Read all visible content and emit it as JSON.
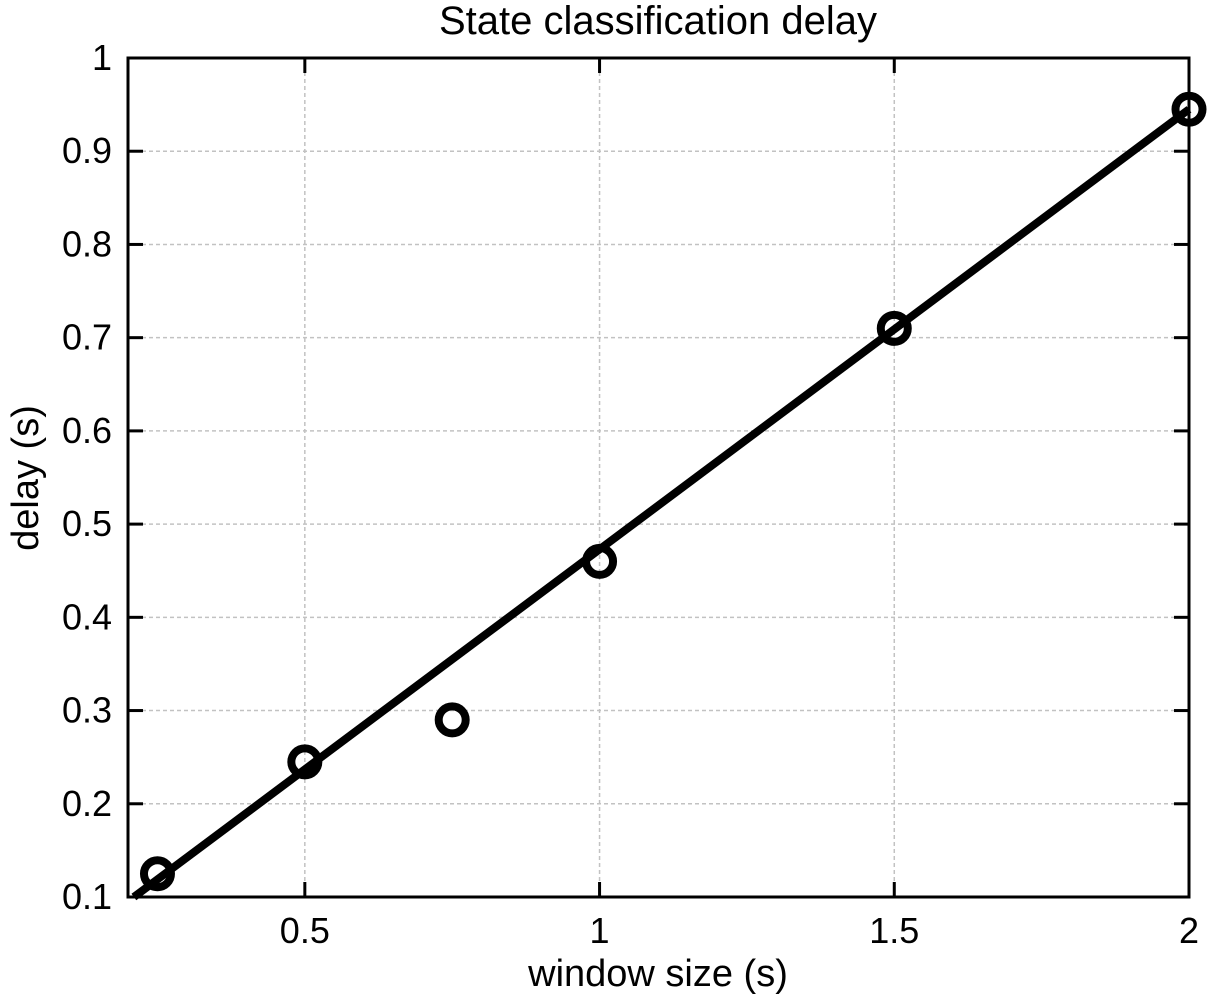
{
  "chart_data": {
    "type": "scatter",
    "title": "State classification delay",
    "xlabel": "window size (s)",
    "ylabel": "delay (s)",
    "xlim": [
      0.2,
      2
    ],
    "ylim": [
      0.1,
      1
    ],
    "x_ticks": [
      0.5,
      1,
      1.5,
      2
    ],
    "x_tick_labels": [
      "0.5",
      "1",
      "1.5",
      "2"
    ],
    "y_ticks": [
      0.1,
      0.2,
      0.3,
      0.4,
      0.5,
      0.6,
      0.7,
      0.8,
      0.9,
      1
    ],
    "y_tick_labels": [
      "0.1",
      "0.2",
      "0.3",
      "0.4",
      "0.5",
      "0.6",
      "0.7",
      "0.8",
      "0.9",
      "1"
    ],
    "grid": true,
    "legend": "none",
    "points": {
      "x": [
        0.25,
        0.5,
        0.75,
        1,
        1.5,
        2
      ],
      "y": [
        0.125,
        0.245,
        0.29,
        0.46,
        0.71,
        0.945
      ]
    },
    "fit_line": {
      "x": [
        0.21,
        2
      ],
      "y": [
        0.1,
        0.945
      ]
    },
    "colors": {
      "marker": "#000000",
      "line": "#000000",
      "grid": "#c2c2c2",
      "axis": "#000000",
      "background": "#ffffff",
      "text": "#000000"
    }
  }
}
